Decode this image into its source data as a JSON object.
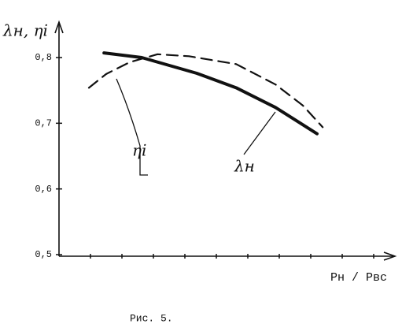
{
  "chart_data": {
    "type": "line",
    "y_label": "λн, ηi",
    "x_label": "Pн / Pвс",
    "caption": "Рис. 5.",
    "xlim": [
      0,
      10.6
    ],
    "xticks": [
      1,
      2,
      3,
      4,
      5,
      6,
      7,
      8,
      9,
      10
    ],
    "ylim": [
      0.5,
      0.86
    ],
    "yticks": [
      {
        "value": 0.5,
        "label": "0,5"
      },
      {
        "value": 0.6,
        "label": "0,6"
      },
      {
        "value": 0.7,
        "label": "0,7"
      },
      {
        "value": 0.8,
        "label": "0,8"
      }
    ],
    "series": [
      {
        "name": "λн",
        "color": "#111111",
        "style": "solid",
        "x": [
          1.43,
          2.63,
          4.38,
          5.63,
          6.88,
          8.2
        ],
        "values": [
          0.807,
          0.8,
          0.776,
          0.754,
          0.724,
          0.684
        ]
      },
      {
        "name": "ηi",
        "color": "#111111",
        "style": "dashed",
        "x": [
          0.95,
          1.5,
          2.25,
          3.13,
          4.13,
          5.63,
          6.88,
          7.75,
          8.38
        ],
        "values": [
          0.754,
          0.775,
          0.793,
          0.805,
          0.802,
          0.79,
          0.759,
          0.727,
          0.694
        ]
      }
    ]
  }
}
